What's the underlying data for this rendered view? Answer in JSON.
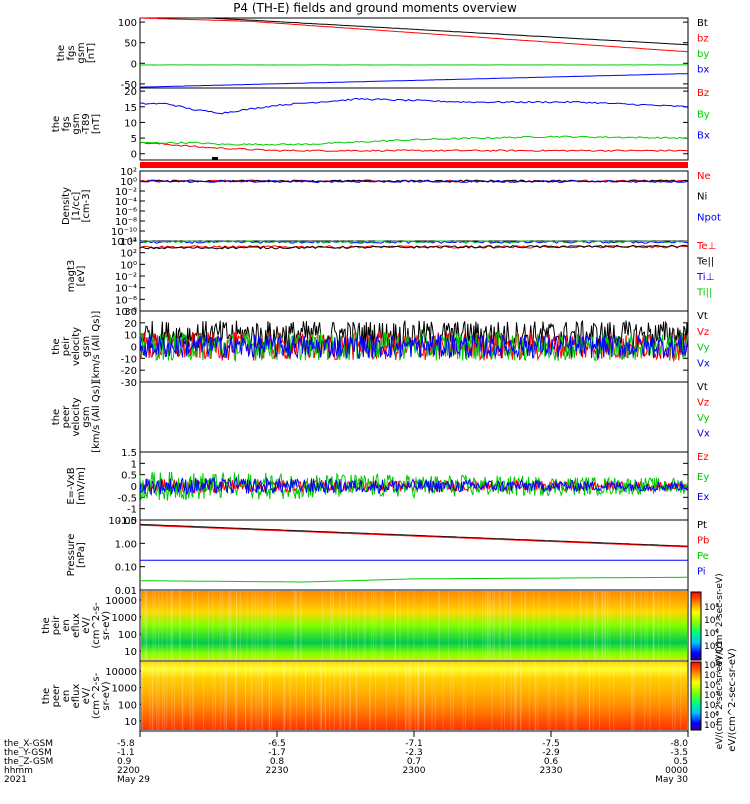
{
  "title": "P4 (TH-E) fields and ground moments overview",
  "colors": {
    "black": "#000000",
    "red": "#ff0000",
    "green": "#00cc00",
    "blue": "#0000ff"
  },
  "chart_data": [
    {
      "type": "line",
      "id": "fgs",
      "ylabel": [
        "the",
        "fgs",
        "gsm",
        "[nT]"
      ],
      "ylim": [
        -60,
        110
      ],
      "yticks": [
        -50,
        0,
        50,
        100
      ],
      "yscale": "linear",
      "series": [
        {
          "name": "Bt",
          "color": "#000000",
          "x": [
            0,
            0.2,
            1
          ],
          "y": [
            118,
            105,
            45
          ]
        },
        {
          "name": "bz",
          "color": "#ff0000",
          "x": [
            0,
            0.2,
            1
          ],
          "y": [
            110,
            102,
            28
          ]
        },
        {
          "name": "by",
          "color": "#00cc00",
          "x": [
            0,
            1
          ],
          "y": [
            -4,
            -4
          ]
        },
        {
          "name": "bx",
          "color": "#0000ff",
          "x": [
            0,
            1
          ],
          "y": [
            -58,
            -25
          ]
        }
      ]
    },
    {
      "type": "line",
      "id": "fgs-dtrnd",
      "ylabel": [
        "the",
        "fgs",
        "gsm",
        "-T89",
        "[nT]"
      ],
      "ylim": [
        -2,
        21
      ],
      "yticks": [
        0,
        5,
        10,
        15,
        20
      ],
      "yscale": "linear",
      "series": [
        {
          "name": "Bz",
          "color": "#ff0000",
          "x": [
            0,
            0.05,
            0.12,
            0.25,
            0.5,
            1
          ],
          "y": [
            3.5,
            3,
            2,
            1,
            1,
            1
          ]
        },
        {
          "name": "By",
          "color": "#00cc00",
          "x": [
            0,
            0.1,
            0.15,
            0.3,
            0.5,
            0.75,
            1
          ],
          "y": [
            3.5,
            3.5,
            3,
            3,
            4.5,
            5.5,
            5
          ]
        },
        {
          "name": "Bx",
          "color": "#0000ff",
          "x": [
            0,
            0.05,
            0.1,
            0.15,
            0.25,
            0.4,
            0.6,
            0.8,
            1
          ],
          "y": [
            16,
            16,
            14,
            13,
            15.5,
            17.5,
            16.5,
            16.5,
            15
          ]
        }
      ]
    },
    {
      "type": "line",
      "id": "density",
      "ylabel": [
        "Density",
        "[1/cc]",
        "[cm-3]"
      ],
      "ylim": [
        -12,
        2
      ],
      "ytick_labels": [
        "10²",
        "10⁰",
        "10⁻²",
        "10⁻⁴",
        "10⁻⁶",
        "10⁻⁸",
        "10⁻¹⁰",
        "10⁻¹²"
      ],
      "yscale": "log",
      "series": [
        {
          "name": "Ne",
          "color": "#ff0000",
          "x": [
            0,
            1
          ],
          "y": [
            0,
            0
          ]
        },
        {
          "name": "Ni",
          "color": "#000000",
          "x": [
            0,
            1
          ],
          "y": [
            0,
            0
          ]
        },
        {
          "name": "Npot",
          "color": "#0000ff",
          "x": [
            0,
            1
          ],
          "y": [
            -0.1,
            -0.1
          ]
        }
      ]
    },
    {
      "type": "line",
      "id": "temperature",
      "ylabel": [
        "magt3",
        "[eV]"
      ],
      "ylim": [
        -8,
        4
      ],
      "ytick_labels": [
        "10⁴",
        "10²",
        "10⁰",
        "10⁻²",
        "10⁻⁴",
        "10⁻⁶",
        "10⁻⁸"
      ],
      "yscale": "log",
      "series": [
        {
          "name": "Te⊥",
          "color": "#ff0000",
          "x": [
            0,
            1
          ],
          "y": [
            3,
            3
          ]
        },
        {
          "name": "Te||",
          "color": "#000000",
          "x": [
            0,
            1
          ],
          "y": [
            2.8,
            3.1
          ]
        },
        {
          "name": "Ti⊥",
          "color": "#0000ff",
          "x": [
            0,
            1
          ],
          "y": [
            3.8,
            3.8
          ]
        },
        {
          "name": "Ti||",
          "color": "#00cc00",
          "x": [
            0,
            1
          ],
          "y": [
            3.9,
            3.9
          ]
        }
      ]
    },
    {
      "type": "line",
      "id": "peir-velocity",
      "ylabel": [
        "the",
        "peir",
        "velocity",
        "gsm",
        "[km/s (All Qs)]"
      ],
      "ylim": [
        -30,
        30
      ],
      "yticks": [
        -30,
        -20,
        -10,
        0,
        10,
        20,
        30
      ],
      "yscale": "linear",
      "series": [
        {
          "name": "Vt",
          "color": "#000000",
          "mean": 10,
          "noise": 12
        },
        {
          "name": "Vz",
          "color": "#ff0000",
          "mean": 0,
          "noise": 12
        },
        {
          "name": "Vy",
          "color": "#00cc00",
          "mean": 0,
          "noise": 12
        },
        {
          "name": "Vx",
          "color": "#0000ff",
          "mean": 0,
          "noise": 10
        }
      ]
    },
    {
      "type": "line",
      "id": "peer-velocity",
      "ylabel": [
        "the",
        "peer",
        "velocity",
        "gsm",
        "[km/s (All Qs)]"
      ],
      "ylim": [
        -30,
        30
      ],
      "yticks": [],
      "yscale": "linear",
      "series": [
        {
          "name": "Vt",
          "color": "#000000"
        },
        {
          "name": "Vz",
          "color": "#ff0000"
        },
        {
          "name": "Vy",
          "color": "#00cc00"
        },
        {
          "name": "Vx",
          "color": "#0000ff"
        }
      ]
    },
    {
      "type": "line",
      "id": "efield",
      "ylabel": [
        "E=-VxB",
        "[mV/m]"
      ],
      "ylim": [
        -1.5,
        1.5
      ],
      "yticks": [
        -1.5,
        -1.0,
        -0.5,
        0.0,
        0.5,
        1.0,
        1.5
      ],
      "yscale": "linear",
      "series": [
        {
          "name": "Ez",
          "color": "#ff0000",
          "mean": 0,
          "noise": 0.3
        },
        {
          "name": "Ey",
          "color": "#00cc00",
          "mean": 0,
          "noise": 0.6
        },
        {
          "name": "Ex",
          "color": "#0000ff",
          "mean": 0,
          "noise": 0.35
        }
      ]
    },
    {
      "type": "line",
      "id": "pressure",
      "ylabel": [
        "Pressure",
        "[nPa]"
      ],
      "ylim": [
        0.01,
        10
      ],
      "ytick_labels": [
        "10.00",
        "1.00",
        "0.10",
        "0.01"
      ],
      "yscale": "log",
      "series": [
        {
          "name": "Pt",
          "color": "#000000",
          "x": [
            0,
            1
          ],
          "y": [
            6.5,
            0.75
          ]
        },
        {
          "name": "Pb",
          "color": "#ff0000",
          "x": [
            0,
            1
          ],
          "y": [
            6.0,
            0.7
          ]
        },
        {
          "name": "Pe",
          "color": "#00cc00",
          "x": [
            0,
            0.3,
            0.5,
            1
          ],
          "y": [
            0.025,
            0.022,
            0.03,
            0.035
          ]
        },
        {
          "name": "Pi",
          "color": "#0000ff",
          "x": [
            0,
            1
          ],
          "y": [
            0.19,
            0.19
          ]
        }
      ]
    },
    {
      "type": "heatmap",
      "id": "peir-eflux",
      "ylabel": [
        "the",
        "peir",
        "en",
        "eflux",
        "eV/",
        "(cm^2-s-",
        "sr-eV)"
      ],
      "ytick_labels": [
        "10000",
        "1000",
        "100",
        "10"
      ],
      "yscale": "log"
    },
    {
      "type": "heatmap",
      "id": "peer-eflux",
      "ylabel": [
        "the",
        "peer",
        "en",
        "eflux",
        "eV/",
        "(cm^2-s-",
        "sr-eV)"
      ],
      "ytick_labels": [
        "10000",
        "1000",
        "100",
        "10"
      ],
      "yscale": "log"
    }
  ],
  "colorbars": {
    "peir_label": "eV/(cm^2-sec-sr-eV)",
    "peir_ticks": [
      "10⁸",
      "10⁶",
      "10⁴",
      "10²"
    ],
    "peer_label": "eV/(cm^2-sec-sr-eV) Q1",
    "peer_ticks": [
      "10⁸",
      "10⁷",
      "10⁶",
      "10⁵",
      "10⁴",
      "10³",
      "10²"
    ],
    "full_label": "eV/(cm^2-sec-sr-eV)"
  },
  "ephemeris": {
    "rows": [
      {
        "label": "the_X-GSM",
        "values": [
          "-5.8",
          "-6.5",
          "-7.1",
          "-7.5",
          "-8.0"
        ]
      },
      {
        "label": "the_Y-GSM",
        "values": [
          "-1.1",
          "-1.7",
          "-2.3",
          "-2.9",
          "-3.5"
        ]
      },
      {
        "label": "the_Z-GSM",
        "values": [
          "0.9",
          "0.8",
          "0.7",
          "0.6",
          "0.5"
        ]
      },
      {
        "label": "hhmm",
        "values": [
          "2200",
          "2230",
          "2300",
          "2330",
          "0000"
        ]
      }
    ],
    "year": "2021",
    "start_date": "May 29",
    "end_date": "May 30"
  }
}
